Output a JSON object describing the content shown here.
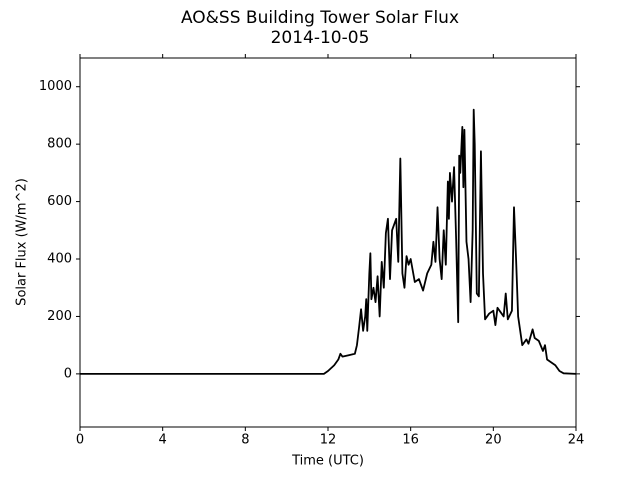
{
  "chart_data": {
    "type": "line",
    "title": "AO&SS Building Tower Solar Flux",
    "subtitle": "2014-10-05",
    "x_label": "Time (UTC)",
    "y_label": "Solar Flux (W/m^2)",
    "xlim": [
      0,
      24
    ],
    "xticks": [
      0,
      4,
      8,
      12,
      16,
      20,
      24
    ],
    "ylim": [
      -185,
      1100
    ],
    "yticks": [
      0,
      200,
      400,
      600,
      800,
      1000
    ],
    "series": [
      {
        "name": "Solar Flux",
        "color": "#000000",
        "x": [
          0,
          11.8,
          12.0,
          12.3,
          12.5,
          12.6,
          12.7,
          13.0,
          13.3,
          13.4,
          13.5,
          13.6,
          13.7,
          13.8,
          13.85,
          13.9,
          14.0,
          14.05,
          14.1,
          14.2,
          14.3,
          14.4,
          14.5,
          14.6,
          14.7,
          14.8,
          14.9,
          15.0,
          15.1,
          15.2,
          15.3,
          15.4,
          15.5,
          15.6,
          15.7,
          15.8,
          15.9,
          16.0,
          16.2,
          16.4,
          16.6,
          16.8,
          17.0,
          17.1,
          17.2,
          17.3,
          17.4,
          17.5,
          17.6,
          17.7,
          17.8,
          17.85,
          17.9,
          18.0,
          18.1,
          18.2,
          18.3,
          18.35,
          18.4,
          18.5,
          18.55,
          18.6,
          18.7,
          18.8,
          18.9,
          19.0,
          19.05,
          19.1,
          19.2,
          19.3,
          19.4,
          19.5,
          19.6,
          19.8,
          20.0,
          20.1,
          20.2,
          20.4,
          20.5,
          20.6,
          20.7,
          20.9,
          21.0,
          21.1,
          21.2,
          21.4,
          21.6,
          21.7,
          21.9,
          22.0,
          22.2,
          22.4,
          22.5,
          22.6,
          22.8,
          23.0,
          23.2,
          23.4,
          24
        ],
        "values": [
          0,
          0,
          10,
          30,
          50,
          70,
          60,
          65,
          70,
          100,
          160,
          225,
          150,
          200,
          260,
          150,
          350,
          420,
          260,
          300,
          250,
          340,
          200,
          390,
          300,
          490,
          540,
          330,
          500,
          520,
          540,
          390,
          750,
          350,
          300,
          410,
          380,
          400,
          320,
          330,
          290,
          350,
          380,
          460,
          390,
          580,
          400,
          330,
          500,
          380,
          670,
          540,
          700,
          600,
          720,
          470,
          180,
          760,
          700,
          860,
          650,
          850,
          460,
          400,
          250,
          500,
          920,
          800,
          280,
          270,
          775,
          350,
          190,
          210,
          220,
          170,
          230,
          210,
          200,
          280,
          190,
          220,
          580,
          400,
          200,
          100,
          120,
          105,
          155,
          125,
          115,
          80,
          100,
          50,
          40,
          30,
          10,
          2,
          0
        ]
      }
    ]
  }
}
